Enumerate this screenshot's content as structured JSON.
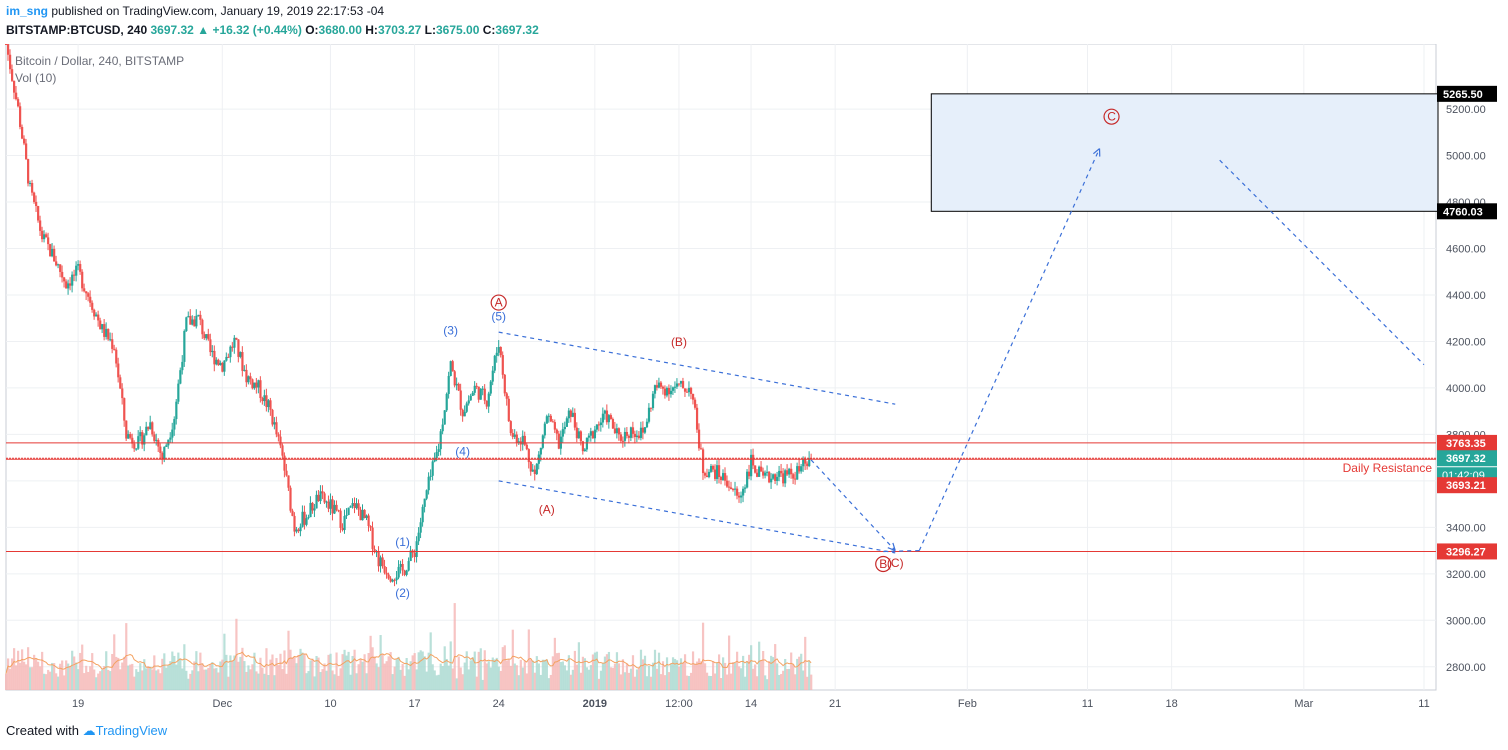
{
  "header": {
    "user": "im_sng",
    "published": "published on TradingView.com, January 19, 2019 22:17:53 -04",
    "symbol": "BITSTAMP:BTCUSD, 240",
    "last": "3697.32",
    "change_arrow": "▲",
    "change": "+16.32 (+0.44%)",
    "o_label": "O:",
    "o": "3680.00",
    "h_label": "H:",
    "h": "3703.27",
    "l_label": "L:",
    "l": "3675.00",
    "c_label": "C:",
    "c": "3697.32"
  },
  "legend": {
    "title": "Bitcoin / Dollar, 240, BITSTAMP",
    "vol": "Vol (10)"
  },
  "footer": {
    "created": "Created with",
    "brand": "TradingView"
  },
  "colors": {
    "up": "#26a69a",
    "down": "#ef5350",
    "line": "#e53935",
    "wave_blue": "#3a6fd8",
    "wave_red": "#c62828",
    "zone": "#e6effa"
  },
  "chart_data": {
    "type": "candlestick",
    "symbol": "BITSTAMP:BTCUSD",
    "interval": "240",
    "price_axis": {
      "min": 2700,
      "max": 5480,
      "ticks": [
        2800,
        3000,
        3200,
        3400,
        3600,
        3800,
        4000,
        4200,
        4400,
        4600,
        4800,
        5000,
        5200
      ],
      "tick_labels": [
        "2800.00",
        "3000.00",
        "3200.00",
        "3400.00",
        "3600.00",
        "3800.00",
        "4000.00",
        "4200.00",
        "4400.00",
        "4600.00",
        "4800.00",
        "5000.00",
        "5200.00"
      ]
    },
    "time_axis": {
      "start": "2018-11-13",
      "end": "2019-03-12",
      "ticks": [
        {
          "date": "2018-11-19",
          "label": "19"
        },
        {
          "date": "2018-12-01",
          "label": "Dec"
        },
        {
          "date": "2018-12-10",
          "label": "10"
        },
        {
          "date": "2018-12-17",
          "label": "17"
        },
        {
          "date": "2018-12-24",
          "label": "24"
        },
        {
          "date": "2019-01-01",
          "label": "2019"
        },
        {
          "date": "2019-01-08",
          "label": "12:00"
        },
        {
          "date": "2019-01-14",
          "label": "14"
        },
        {
          "date": "2019-01-21",
          "label": "21"
        },
        {
          "date": "2019-02-01",
          "label": "Feb"
        },
        {
          "date": "2019-02-11",
          "label": "11"
        },
        {
          "date": "2019-02-18",
          "label": "18"
        },
        {
          "date": "2019-03-01",
          "label": "Mar"
        },
        {
          "date": "2019-03-11",
          "label": "11"
        }
      ]
    },
    "price_path": [
      [
        "2018-11-13",
        5480
      ],
      [
        "2018-11-14",
        5200
      ],
      [
        "2018-11-15",
        4850
      ],
      [
        "2018-11-16",
        4650
      ],
      [
        "2018-11-17",
        4560
      ],
      [
        "2018-11-18",
        4450
      ],
      [
        "2018-11-19",
        4500
      ],
      [
        "2018-11-20",
        4380
      ],
      [
        "2018-11-21",
        4250
      ],
      [
        "2018-11-22",
        4180
      ],
      [
        "2018-11-23",
        3800
      ],
      [
        "2018-11-24",
        3760
      ],
      [
        "2018-11-25",
        3850
      ],
      [
        "2018-11-26",
        3700
      ],
      [
        "2018-11-27",
        3880
      ],
      [
        "2018-11-28",
        4280
      ],
      [
        "2018-11-29",
        4300
      ],
      [
        "2018-11-30",
        4150
      ],
      [
        "2018-12-01",
        4100
      ],
      [
        "2018-12-02",
        4200
      ],
      [
        "2018-12-03",
        4050
      ],
      [
        "2018-12-04",
        4000
      ],
      [
        "2018-12-05",
        3900
      ],
      [
        "2018-12-06",
        3700
      ],
      [
        "2018-12-07",
        3400
      ],
      [
        "2018-12-08",
        3450
      ],
      [
        "2018-12-09",
        3530
      ],
      [
        "2018-12-10",
        3490
      ],
      [
        "2018-12-11",
        3420
      ],
      [
        "2018-12-12",
        3500
      ],
      [
        "2018-12-13",
        3420
      ],
      [
        "2018-12-14",
        3260
      ],
      [
        "2018-12-15",
        3200
      ],
      [
        "2018-12-16",
        3210
      ],
      [
        "2018-12-17",
        3300
      ],
      [
        "2018-12-18",
        3550
      ],
      [
        "2018-12-19",
        3750
      ],
      [
        "2018-12-20",
        4100
      ],
      [
        "2018-12-21",
        3900
      ],
      [
        "2018-12-22",
        4000
      ],
      [
        "2018-12-23",
        3950
      ],
      [
        "2018-12-24",
        4200
      ],
      [
        "2018-12-25",
        3800
      ],
      [
        "2018-12-26",
        3780
      ],
      [
        "2018-12-27",
        3620
      ],
      [
        "2018-12-28",
        3880
      ],
      [
        "2018-12-29",
        3760
      ],
      [
        "2018-12-30",
        3900
      ],
      [
        "2018-12-31",
        3720
      ],
      [
        "2019-01-01",
        3830
      ],
      [
        "2019-01-02",
        3880
      ],
      [
        "2019-01-03",
        3780
      ],
      [
        "2019-01-04",
        3820
      ],
      [
        "2019-01-05",
        3800
      ],
      [
        "2019-01-06",
        4000
      ],
      [
        "2019-01-07",
        4000
      ],
      [
        "2019-01-08",
        4000
      ],
      [
        "2019-01-09",
        4000
      ],
      [
        "2019-01-10",
        3650
      ],
      [
        "2019-01-11",
        3640
      ],
      [
        "2019-01-12",
        3600
      ],
      [
        "2019-01-13",
        3520
      ],
      [
        "2019-01-14",
        3680
      ],
      [
        "2019-01-15",
        3600
      ],
      [
        "2019-01-16",
        3630
      ],
      [
        "2019-01-17",
        3620
      ],
      [
        "2019-01-18",
        3640
      ],
      [
        "2019-01-19",
        3697
      ]
    ],
    "horizontal_lines": [
      {
        "price": 3763.35,
        "label": "3763.35",
        "text": "Daily Resistance"
      },
      {
        "price": 3697.32,
        "label": "3697.32",
        "countdown": "01:42:09"
      },
      {
        "price": 3693.21,
        "label": "3693.21"
      },
      {
        "price": 3296.27,
        "label": "3296.27"
      }
    ],
    "target_zone": {
      "start": "2019-01-29",
      "end": "2019-03-12",
      "top": 5265.5,
      "bottom": 4760.03,
      "top_label": "5265.50",
      "bottom_label": "4760.03"
    },
    "trendlines": [
      {
        "from": [
          "2018-12-24",
          4240
        ],
        "to": [
          "2019-01-26",
          3930
        ]
      },
      {
        "from": [
          "2018-12-24",
          3600
        ],
        "to": [
          "2019-01-26",
          3290
        ]
      }
    ],
    "projection": [
      {
        "from": [
          "2019-01-19",
          3690
        ],
        "to": [
          "2019-01-26",
          3300
        ]
      },
      {
        "from": [
          "2019-01-25",
          3296
        ],
        "to": [
          "2019-01-28",
          3300
        ]
      },
      {
        "from": [
          "2019-01-28",
          3300
        ],
        "to": [
          "2019-02-12",
          5030
        ]
      },
      {
        "from": [
          "2019-02-22",
          4980
        ],
        "to": [
          "2019-03-11",
          4100
        ]
      }
    ],
    "wave_labels": [
      {
        "text": "(1)",
        "date": "2018-12-16",
        "price": 3320,
        "color": "blue"
      },
      {
        "text": "(2)",
        "date": "2018-12-16",
        "price": 3100,
        "color": "blue"
      },
      {
        "text": "(3)",
        "date": "2018-12-20",
        "price": 4230,
        "color": "blue"
      },
      {
        "text": "(4)",
        "date": "2018-12-21",
        "price": 3710,
        "color": "blue"
      },
      {
        "text": "(5)",
        "date": "2018-12-24",
        "price": 4290,
        "color": "blue"
      },
      {
        "text": "A",
        "date": "2018-12-24",
        "price": 4350,
        "color": "red",
        "circled": true
      },
      {
        "text": "(A)",
        "date": "2018-12-28",
        "price": 3460,
        "color": "red"
      },
      {
        "text": "(B)",
        "date": "2019-01-08",
        "price": 4180,
        "color": "red"
      },
      {
        "text": "(C)",
        "date": "2019-01-26",
        "price": 3230,
        "color": "red"
      },
      {
        "text": "B",
        "date": "2019-01-25",
        "price": 3225,
        "color": "red",
        "circled": true
      },
      {
        "text": "C",
        "date": "2019-02-13",
        "price": 5150,
        "color": "red",
        "circled": true
      }
    ],
    "volume": {
      "ma_period": 10
    }
  }
}
